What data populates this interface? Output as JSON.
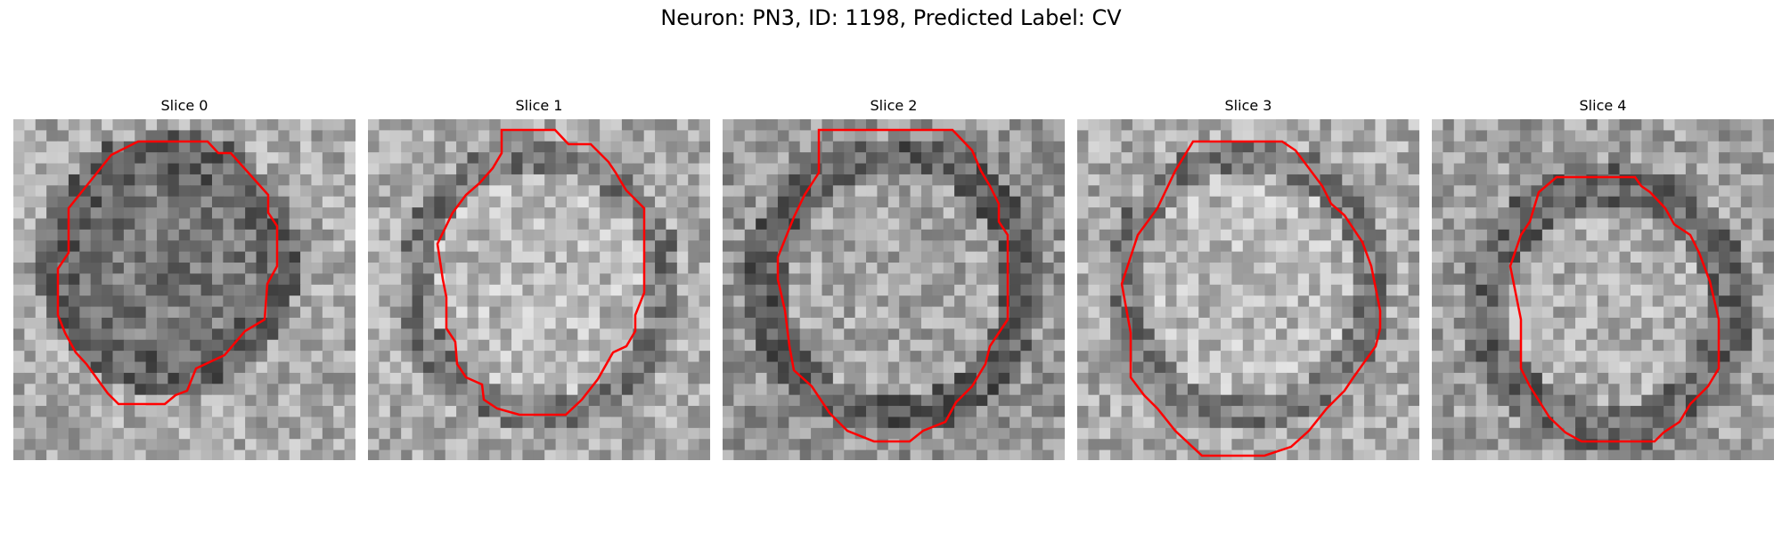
{
  "figure": {
    "title": "Neuron: PN3, ID: 1198, Predicted Label: CV"
  },
  "panels": [
    {
      "title": "Slice 0"
    },
    {
      "title": "Slice 1"
    },
    {
      "title": "Slice 2"
    },
    {
      "title": "Slice 3"
    },
    {
      "title": "Slice 4"
    }
  ],
  "colors": {
    "contour": "#ff0000",
    "background": "#ffffff"
  }
}
